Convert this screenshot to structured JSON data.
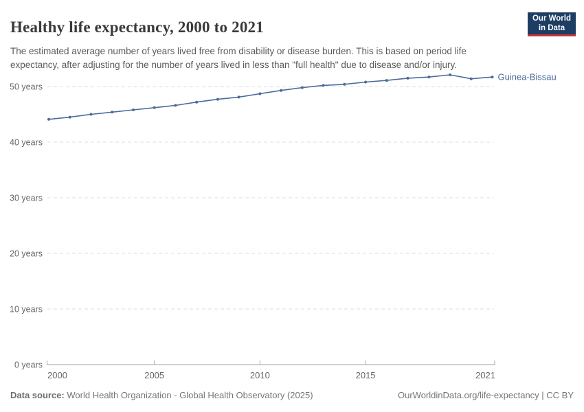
{
  "header": {
    "title": "Healthy life expectancy, 2000 to 2021",
    "subtitle": "The estimated average number of years lived free from disability or disease burden. This is based on period life expectancy, after adjusting for the number of years lived in less than \"full health\" due to disease and/or injury.",
    "logo": {
      "line1": "Our World",
      "line2": "in Data",
      "bg_color": "#1d3d63",
      "stripe_color": "#c2343c"
    }
  },
  "chart_data": {
    "type": "line",
    "title": "Healthy life expectancy, 2000 to 2021",
    "x": [
      2000,
      2001,
      2002,
      2003,
      2004,
      2005,
      2006,
      2007,
      2008,
      2009,
      2010,
      2011,
      2012,
      2013,
      2014,
      2015,
      2016,
      2017,
      2018,
      2019,
      2020,
      2021
    ],
    "series": [
      {
        "name": "Guinea-Bissau",
        "color": "#4C6A9C",
        "values": [
          44.1,
          44.5,
          45.0,
          45.4,
          45.8,
          46.2,
          46.6,
          47.2,
          47.7,
          48.1,
          48.7,
          49.3,
          49.8,
          50.2,
          50.4,
          50.8,
          51.1,
          51.5,
          51.7,
          52.1,
          51.4,
          51.7
        ]
      }
    ],
    "xticks": [
      2000,
      2005,
      2010,
      2015,
      2021
    ],
    "yticks": [
      0,
      10,
      20,
      30,
      40,
      50
    ],
    "ytick_suffix": " years",
    "ylim": [
      0,
      55
    ],
    "xlabel": "",
    "ylabel": "",
    "grid": "horizontal-dashed",
    "legend_position": "end-of-line-label"
  },
  "footer": {
    "datasource_label": "Data source:",
    "datasource_value": "World Health Organization - Global Health Observatory (2025)",
    "link": "OurWorldinData.org/life-expectancy | CC BY"
  }
}
